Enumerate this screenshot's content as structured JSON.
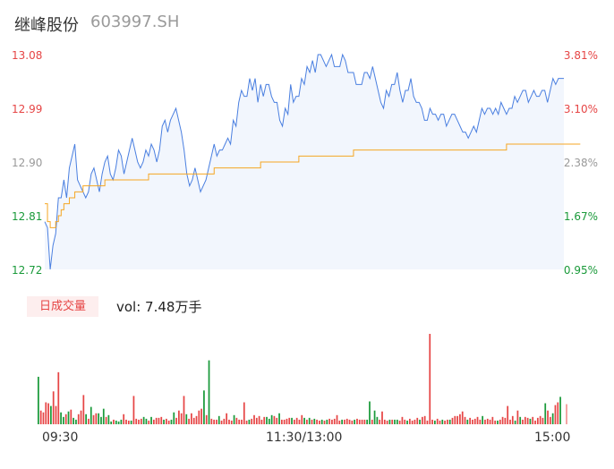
{
  "header": {
    "name": "继峰股份",
    "code": "603997.SH"
  },
  "colors": {
    "up": "#e64545",
    "down": "#1a9a3a",
    "flat": "#999999",
    "price_line": "#4a7fe0",
    "avg_line": "#f5a623",
    "volume_cursor": "#f4a3a3"
  },
  "volume": {
    "tag": "日成交量",
    "summary": "vol: 7.48万手"
  },
  "chart_data": {
    "type": "line",
    "y_left_ticks": [
      "13.08",
      "12.99",
      "12.90",
      "12.81",
      "12.72"
    ],
    "y_right_ticks": [
      "3.81%",
      "3.10%",
      "2.38%",
      "1.67%",
      "0.95%"
    ],
    "x_ticks": [
      "09:30",
      "11:30/13:00",
      "15:00"
    ],
    "ylim": [
      12.72,
      13.08
    ],
    "prev_close_pct_ref": "2.38%",
    "series": [
      {
        "values": [
          12.8,
          12.79,
          12.72,
          12.76,
          12.78,
          12.84,
          12.84,
          12.87,
          12.84,
          12.89,
          12.91,
          12.93,
          12.87,
          12.86,
          12.85,
          12.84,
          12.85,
          12.88,
          12.89,
          12.87,
          12.85,
          12.88,
          12.9,
          12.91,
          12.88,
          12.87,
          12.89,
          12.92,
          12.91,
          12.88,
          12.9,
          12.92,
          12.94,
          12.92,
          12.9,
          12.89,
          12.9,
          12.92,
          12.91,
          12.93,
          12.92,
          12.9,
          12.92,
          12.96,
          12.97,
          12.95,
          12.97,
          12.98,
          12.99,
          12.97,
          12.95,
          12.92,
          12.88,
          12.86,
          12.87,
          12.89,
          12.87,
          12.85,
          12.86,
          12.87,
          12.89,
          12.91,
          12.93,
          12.91,
          12.92,
          12.92,
          12.93,
          12.94,
          12.93,
          12.97,
          12.96,
          13.0,
          13.02,
          13.01,
          13.01,
          13.04,
          13.02,
          13.04,
          13.0,
          13.03,
          13.01,
          13.03,
          13.03,
          13.01,
          13.0,
          13.0,
          12.97,
          12.96,
          12.99,
          12.98,
          13.03,
          13.0,
          13.01,
          13.01,
          13.04,
          13.03,
          13.06,
          13.05,
          13.07,
          13.05,
          13.08,
          13.08,
          13.07,
          13.06,
          13.07,
          13.08,
          13.06,
          13.06,
          13.06,
          13.08,
          13.07,
          13.05,
          13.05,
          13.05,
          13.03,
          13.03,
          13.03,
          13.05,
          13.05,
          13.04,
          13.06,
          13.04,
          13.02,
          13.0,
          12.99,
          13.02,
          13.01,
          13.03,
          13.03,
          13.05,
          13.02,
          13.0,
          13.02,
          13.02,
          13.04,
          13.01,
          13.0,
          13.0,
          12.99,
          12.97,
          12.97,
          12.99,
          12.98,
          12.98,
          12.97,
          12.98,
          12.98,
          12.96,
          12.97,
          12.98,
          12.98,
          12.97,
          12.96,
          12.95,
          12.95,
          12.94,
          12.95,
          12.96,
          12.95,
          12.97,
          12.99,
          12.98,
          12.99,
          12.99,
          12.98,
          12.99,
          12.98,
          13.0,
          12.99,
          12.98,
          12.99,
          12.99,
          13.01,
          13.0,
          13.01,
          13.02,
          13.02,
          13.0,
          13.01,
          13.02,
          13.01,
          13.01,
          13.02,
          13.02,
          13.0,
          13.02,
          13.04,
          13.03,
          13.04,
          13.04,
          13.04
        ]
      },
      {
        "values": [
          12.83,
          12.8,
          12.79,
          12.79,
          12.8,
          12.81,
          12.82,
          12.83,
          12.83,
          12.84,
          12.84,
          12.85,
          12.85,
          12.85,
          12.86,
          12.86,
          12.86,
          12.86,
          12.86,
          12.86,
          12.86,
          12.86,
          12.87,
          12.87,
          12.87,
          12.87,
          12.87,
          12.87,
          12.87,
          12.87,
          12.87,
          12.87,
          12.87,
          12.87,
          12.87,
          12.87,
          12.87,
          12.87,
          12.88,
          12.88,
          12.88,
          12.88,
          12.88,
          12.88,
          12.88,
          12.88,
          12.88,
          12.88,
          12.88,
          12.88,
          12.88,
          12.88,
          12.88,
          12.88,
          12.88,
          12.88,
          12.88,
          12.88,
          12.88,
          12.88,
          12.88,
          12.88,
          12.89,
          12.89,
          12.89,
          12.89,
          12.89,
          12.89,
          12.89,
          12.89,
          12.89,
          12.89,
          12.89,
          12.89,
          12.89,
          12.89,
          12.89,
          12.89,
          12.89,
          12.9,
          12.9,
          12.9,
          12.9,
          12.9,
          12.9,
          12.9,
          12.9,
          12.9,
          12.9,
          12.9,
          12.9,
          12.9,
          12.9,
          12.91,
          12.91,
          12.91,
          12.91,
          12.91,
          12.91,
          12.91,
          12.91,
          12.91,
          12.91,
          12.91,
          12.91,
          12.91,
          12.91,
          12.91,
          12.91,
          12.91,
          12.91,
          12.91,
          12.91,
          12.92,
          12.92,
          12.92,
          12.92,
          12.92,
          12.92,
          12.92,
          12.92,
          12.92,
          12.92,
          12.92,
          12.92,
          12.92,
          12.92,
          12.92,
          12.92,
          12.92,
          12.92,
          12.92,
          12.92,
          12.92,
          12.92,
          12.92,
          12.92,
          12.92,
          12.92,
          12.92,
          12.92,
          12.92,
          12.92,
          12.92,
          12.92,
          12.92,
          12.92,
          12.92,
          12.92,
          12.92,
          12.92,
          12.92,
          12.92,
          12.92,
          12.92,
          12.92,
          12.92,
          12.92,
          12.92,
          12.92,
          12.92,
          12.92,
          12.92,
          12.92,
          12.92,
          12.92,
          12.92,
          12.92,
          12.92,
          12.93,
          12.93,
          12.93,
          12.93,
          12.93,
          12.93,
          12.93,
          12.93,
          12.93,
          12.93,
          12.93,
          12.93,
          12.93,
          12.93,
          12.93,
          12.93,
          12.93,
          12.93,
          12.93,
          12.93,
          12.93,
          12.93,
          12.93,
          12.93,
          12.93,
          12.93,
          12.93,
          12.93
        ]
      }
    ],
    "volume_bars": [
      {
        "v": 0.52,
        "c": "down"
      },
      {
        "v": 0.15,
        "c": "up"
      },
      {
        "v": 0.13,
        "c": "up"
      },
      {
        "v": 0.24,
        "c": "up"
      },
      {
        "v": 0.23,
        "c": "up"
      },
      {
        "v": 0.2,
        "c": "down"
      },
      {
        "v": 0.36,
        "c": "up"
      },
      {
        "v": 0.2,
        "c": "up"
      },
      {
        "v": 0.57,
        "c": "up"
      },
      {
        "v": 0.13,
        "c": "down"
      },
      {
        "v": 0.08,
        "c": "down"
      },
      {
        "v": 0.11,
        "c": "up"
      },
      {
        "v": 0.14,
        "c": "down"
      },
      {
        "v": 0.16,
        "c": "up"
      },
      {
        "v": 0.07,
        "c": "down"
      },
      {
        "v": 0.05,
        "c": "down"
      },
      {
        "v": 0.11,
        "c": "up"
      },
      {
        "v": 0.15,
        "c": "up"
      },
      {
        "v": 0.32,
        "c": "up"
      },
      {
        "v": 0.11,
        "c": "down"
      },
      {
        "v": 0.06,
        "c": "up"
      },
      {
        "v": 0.19,
        "c": "down"
      },
      {
        "v": 0.1,
        "c": "up"
      },
      {
        "v": 0.12,
        "c": "up"
      },
      {
        "v": 0.12,
        "c": "down"
      },
      {
        "v": 0.08,
        "c": "down"
      },
      {
        "v": 0.17,
        "c": "down"
      },
      {
        "v": 0.08,
        "c": "up"
      },
      {
        "v": 0.1,
        "c": "down"
      },
      {
        "v": 0.03,
        "c": "down"
      },
      {
        "v": 0.05,
        "c": "up"
      },
      {
        "v": 0.04,
        "c": "down"
      },
      {
        "v": 0.03,
        "c": "down"
      },
      {
        "v": 0.05,
        "c": "down"
      },
      {
        "v": 0.11,
        "c": "up"
      },
      {
        "v": 0.05,
        "c": "up"
      },
      {
        "v": 0.04,
        "c": "up"
      },
      {
        "v": 0.04,
        "c": "down"
      },
      {
        "v": 0.31,
        "c": "up"
      },
      {
        "v": 0.06,
        "c": "up"
      },
      {
        "v": 0.05,
        "c": "up"
      },
      {
        "v": 0.06,
        "c": "up"
      },
      {
        "v": 0.08,
        "c": "down"
      },
      {
        "v": 0.06,
        "c": "down"
      },
      {
        "v": 0.04,
        "c": "up"
      },
      {
        "v": 0.08,
        "c": "down"
      },
      {
        "v": 0.05,
        "c": "up"
      },
      {
        "v": 0.07,
        "c": "up"
      },
      {
        "v": 0.07,
        "c": "up"
      },
      {
        "v": 0.08,
        "c": "up"
      },
      {
        "v": 0.05,
        "c": "down"
      },
      {
        "v": 0.06,
        "c": "up"
      },
      {
        "v": 0.04,
        "c": "up"
      },
      {
        "v": 0.05,
        "c": "down"
      },
      {
        "v": 0.13,
        "c": "down"
      },
      {
        "v": 0.07,
        "c": "up"
      },
      {
        "v": 0.15,
        "c": "up"
      },
      {
        "v": 0.12,
        "c": "up"
      },
      {
        "v": 0.31,
        "c": "up"
      },
      {
        "v": 0.11,
        "c": "down"
      },
      {
        "v": 0.06,
        "c": "up"
      },
      {
        "v": 0.12,
        "c": "up"
      },
      {
        "v": 0.07,
        "c": "up"
      },
      {
        "v": 0.09,
        "c": "up"
      },
      {
        "v": 0.15,
        "c": "up"
      },
      {
        "v": 0.17,
        "c": "up"
      },
      {
        "v": 0.37,
        "c": "down"
      },
      {
        "v": 0.1,
        "c": "up"
      },
      {
        "v": 0.7,
        "c": "down"
      },
      {
        "v": 0.06,
        "c": "up"
      },
      {
        "v": 0.05,
        "c": "up"
      },
      {
        "v": 0.05,
        "c": "up"
      },
      {
        "v": 0.09,
        "c": "down"
      },
      {
        "v": 0.04,
        "c": "up"
      },
      {
        "v": 0.06,
        "c": "up"
      },
      {
        "v": 0.12,
        "c": "up"
      },
      {
        "v": 0.05,
        "c": "up"
      },
      {
        "v": 0.04,
        "c": "up"
      },
      {
        "v": 0.1,
        "c": "down"
      },
      {
        "v": 0.07,
        "c": "up"
      },
      {
        "v": 0.05,
        "c": "up"
      },
      {
        "v": 0.05,
        "c": "up"
      },
      {
        "v": 0.24,
        "c": "up"
      },
      {
        "v": 0.04,
        "c": "up"
      },
      {
        "v": 0.05,
        "c": "down"
      },
      {
        "v": 0.06,
        "c": "up"
      },
      {
        "v": 0.1,
        "c": "up"
      },
      {
        "v": 0.07,
        "c": "up"
      },
      {
        "v": 0.09,
        "c": "up"
      },
      {
        "v": 0.05,
        "c": "up"
      },
      {
        "v": 0.08,
        "c": "up"
      },
      {
        "v": 0.08,
        "c": "down"
      },
      {
        "v": 0.06,
        "c": "down"
      },
      {
        "v": 0.1,
        "c": "down"
      },
      {
        "v": 0.09,
        "c": "up"
      },
      {
        "v": 0.07,
        "c": "up"
      },
      {
        "v": 0.12,
        "c": "down"
      },
      {
        "v": 0.05,
        "c": "up"
      },
      {
        "v": 0.05,
        "c": "up"
      },
      {
        "v": 0.06,
        "c": "up"
      },
      {
        "v": 0.07,
        "c": "up"
      },
      {
        "v": 0.07,
        "c": "down"
      },
      {
        "v": 0.05,
        "c": "up"
      },
      {
        "v": 0.07,
        "c": "up"
      },
      {
        "v": 0.05,
        "c": "up"
      },
      {
        "v": 0.1,
        "c": "up"
      },
      {
        "v": 0.07,
        "c": "down"
      },
      {
        "v": 0.05,
        "c": "up"
      },
      {
        "v": 0.07,
        "c": "down"
      },
      {
        "v": 0.05,
        "c": "up"
      },
      {
        "v": 0.06,
        "c": "down"
      },
      {
        "v": 0.05,
        "c": "up"
      },
      {
        "v": 0.04,
        "c": "up"
      },
      {
        "v": 0.05,
        "c": "down"
      },
      {
        "v": 0.04,
        "c": "up"
      },
      {
        "v": 0.05,
        "c": "down"
      },
      {
        "v": 0.06,
        "c": "up"
      },
      {
        "v": 0.05,
        "c": "up"
      },
      {
        "v": 0.06,
        "c": "up"
      },
      {
        "v": 0.1,
        "c": "up"
      },
      {
        "v": 0.04,
        "c": "up"
      },
      {
        "v": 0.05,
        "c": "down"
      },
      {
        "v": 0.05,
        "c": "up"
      },
      {
        "v": 0.06,
        "c": "up"
      },
      {
        "v": 0.05,
        "c": "up"
      },
      {
        "v": 0.04,
        "c": "up"
      },
      {
        "v": 0.05,
        "c": "down"
      },
      {
        "v": 0.06,
        "c": "up"
      },
      {
        "v": 0.05,
        "c": "up"
      },
      {
        "v": 0.05,
        "c": "up"
      },
      {
        "v": 0.05,
        "c": "up"
      },
      {
        "v": 0.05,
        "c": "down"
      },
      {
        "v": 0.25,
        "c": "down"
      },
      {
        "v": 0.05,
        "c": "up"
      },
      {
        "v": 0.15,
        "c": "down"
      },
      {
        "v": 0.08,
        "c": "down"
      },
      {
        "v": 0.05,
        "c": "up"
      },
      {
        "v": 0.14,
        "c": "up"
      },
      {
        "v": 0.05,
        "c": "up"
      },
      {
        "v": 0.04,
        "c": "up"
      },
      {
        "v": 0.05,
        "c": "down"
      },
      {
        "v": 0.05,
        "c": "up"
      },
      {
        "v": 0.05,
        "c": "down"
      },
      {
        "v": 0.05,
        "c": "down"
      },
      {
        "v": 0.04,
        "c": "up"
      },
      {
        "v": 0.08,
        "c": "up"
      },
      {
        "v": 0.05,
        "c": "up"
      },
      {
        "v": 0.04,
        "c": "down"
      },
      {
        "v": 0.06,
        "c": "up"
      },
      {
        "v": 0.04,
        "c": "up"
      },
      {
        "v": 0.05,
        "c": "up"
      },
      {
        "v": 0.07,
        "c": "up"
      },
      {
        "v": 0.05,
        "c": "down"
      },
      {
        "v": 0.08,
        "c": "up"
      },
      {
        "v": 0.09,
        "c": "up"
      },
      {
        "v": 0.04,
        "c": "up"
      },
      {
        "v": 0.99,
        "c": "up"
      },
      {
        "v": 0.05,
        "c": "up"
      },
      {
        "v": 0.04,
        "c": "down"
      },
      {
        "v": 0.06,
        "c": "up"
      },
      {
        "v": 0.04,
        "c": "up"
      },
      {
        "v": 0.05,
        "c": "down"
      },
      {
        "v": 0.04,
        "c": "up"
      },
      {
        "v": 0.05,
        "c": "up"
      },
      {
        "v": 0.05,
        "c": "down"
      },
      {
        "v": 0.07,
        "c": "up"
      },
      {
        "v": 0.09,
        "c": "up"
      },
      {
        "v": 0.09,
        "c": "up"
      },
      {
        "v": 0.11,
        "c": "up"
      },
      {
        "v": 0.14,
        "c": "up"
      },
      {
        "v": 0.08,
        "c": "up"
      },
      {
        "v": 0.05,
        "c": "down"
      },
      {
        "v": 0.07,
        "c": "up"
      },
      {
        "v": 0.05,
        "c": "up"
      },
      {
        "v": 0.06,
        "c": "up"
      },
      {
        "v": 0.08,
        "c": "up"
      },
      {
        "v": 0.05,
        "c": "up"
      },
      {
        "v": 0.09,
        "c": "down"
      },
      {
        "v": 0.05,
        "c": "up"
      },
      {
        "v": 0.06,
        "c": "up"
      },
      {
        "v": 0.05,
        "c": "up"
      },
      {
        "v": 0.08,
        "c": "up"
      },
      {
        "v": 0.04,
        "c": "up"
      },
      {
        "v": 0.04,
        "c": "down"
      },
      {
        "v": 0.05,
        "c": "up"
      },
      {
        "v": 0.08,
        "c": "up"
      },
      {
        "v": 0.07,
        "c": "up"
      },
      {
        "v": 0.2,
        "c": "up"
      },
      {
        "v": 0.05,
        "c": "up"
      },
      {
        "v": 0.09,
        "c": "up"
      },
      {
        "v": 0.04,
        "c": "down"
      },
      {
        "v": 0.15,
        "c": "up"
      },
      {
        "v": 0.08,
        "c": "down"
      },
      {
        "v": 0.05,
        "c": "up"
      },
      {
        "v": 0.08,
        "c": "up"
      },
      {
        "v": 0.07,
        "c": "up"
      },
      {
        "v": 0.06,
        "c": "down"
      },
      {
        "v": 0.08,
        "c": "up"
      },
      {
        "v": 0.04,
        "c": "up"
      },
      {
        "v": 0.07,
        "c": "up"
      },
      {
        "v": 0.09,
        "c": "up"
      },
      {
        "v": 0.07,
        "c": "up"
      },
      {
        "v": 0.23,
        "c": "down"
      },
      {
        "v": 0.15,
        "c": "up"
      },
      {
        "v": 0.08,
        "c": "up"
      },
      {
        "v": 0.12,
        "c": "down"
      },
      {
        "v": 0.21,
        "c": "up"
      },
      {
        "v": 0.24,
        "c": "up"
      },
      {
        "v": 0.3,
        "c": "down"
      }
    ],
    "volume_cursor": 0.22
  }
}
